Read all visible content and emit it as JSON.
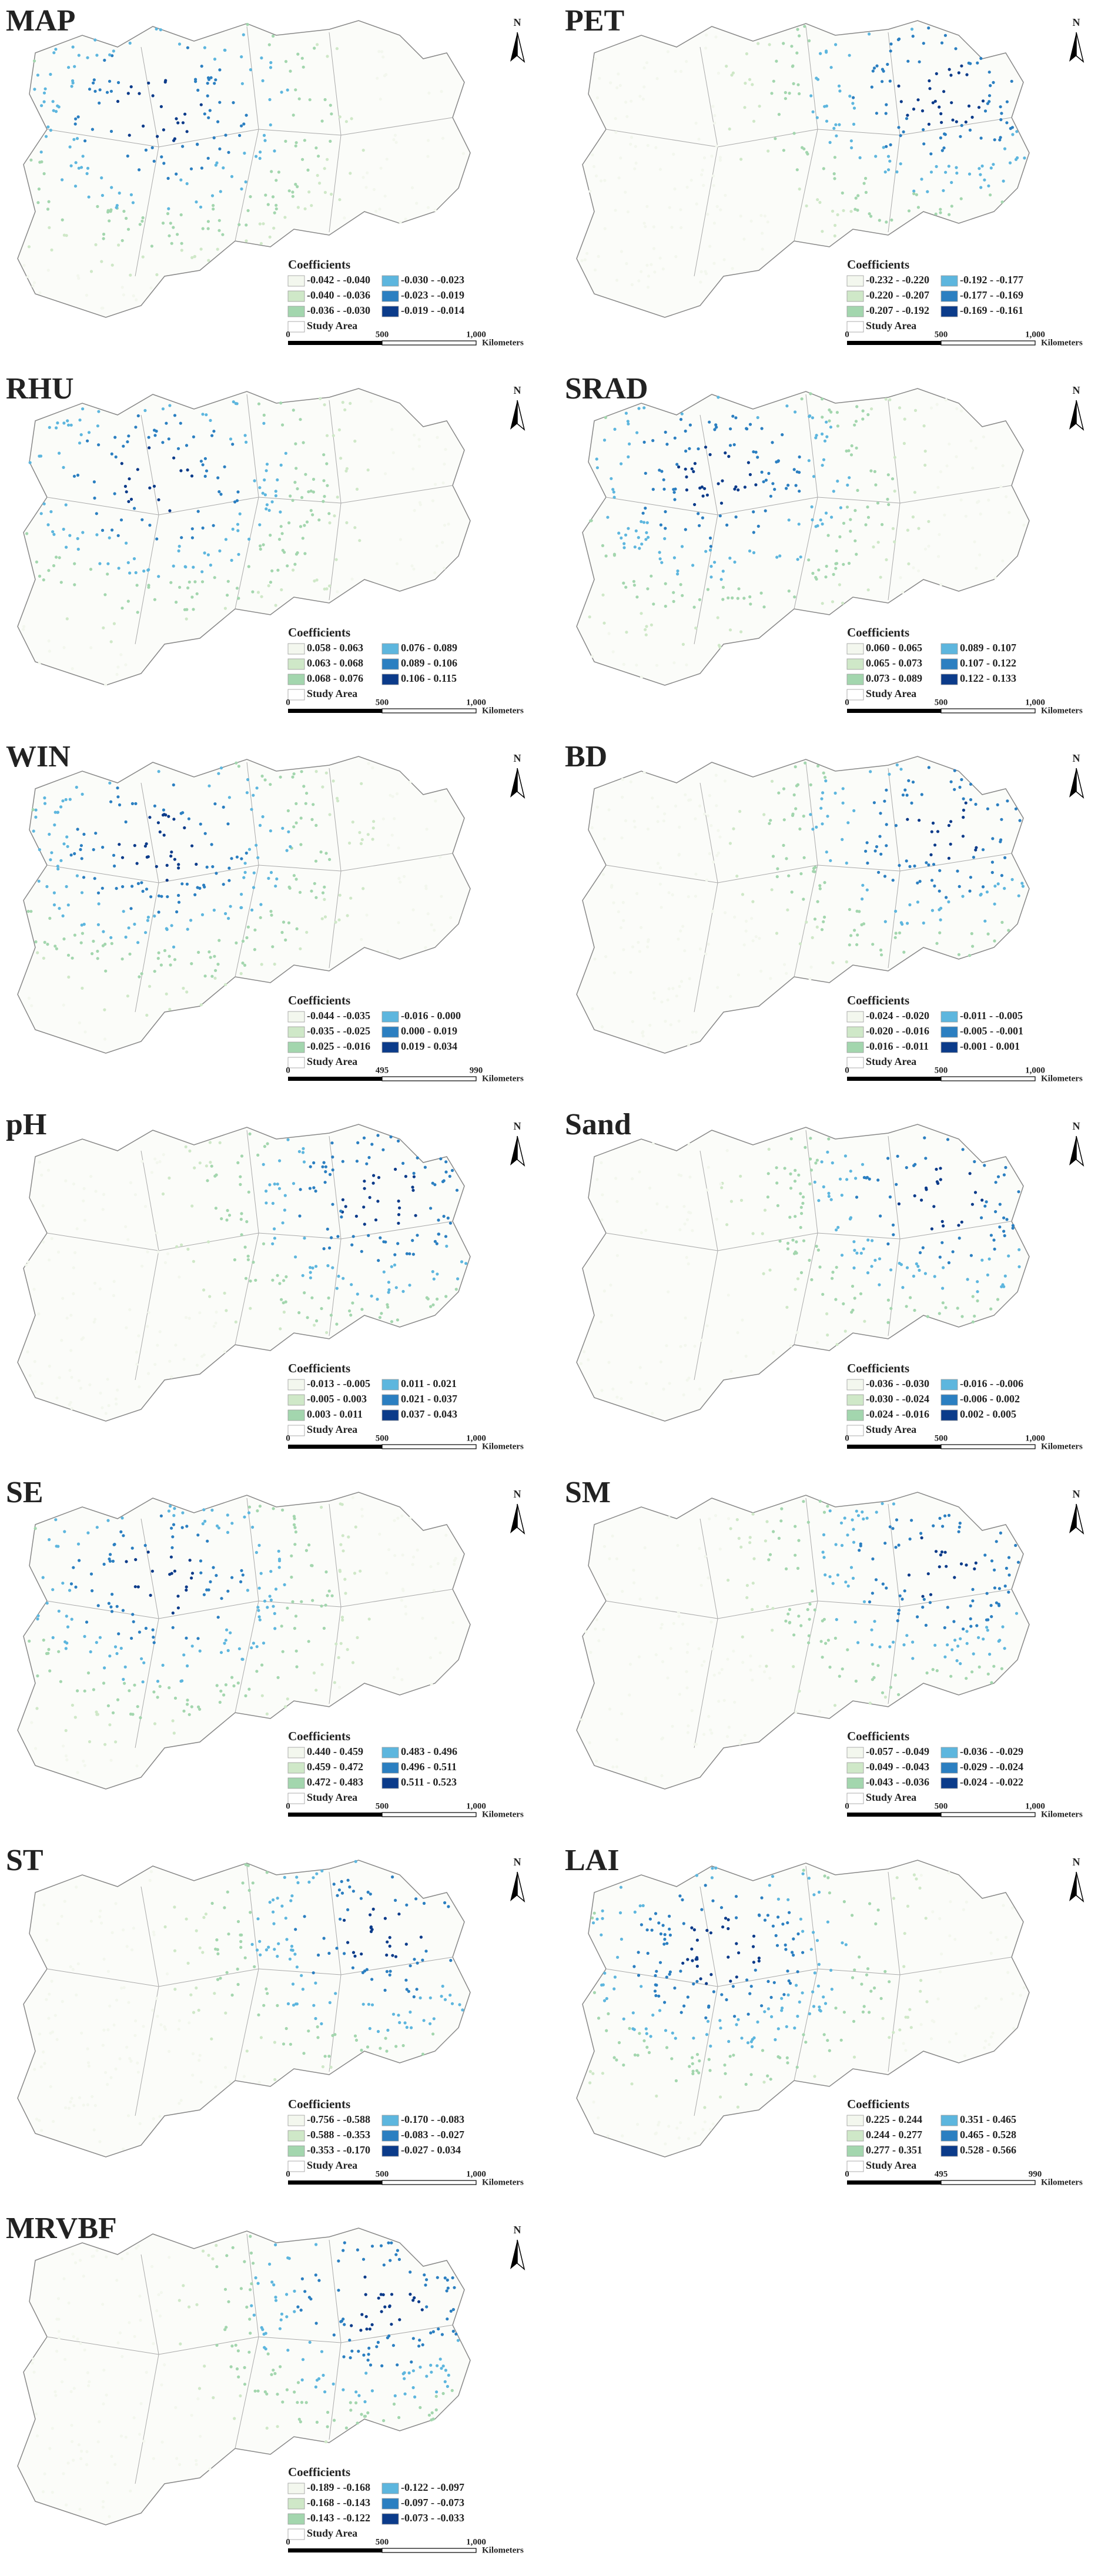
{
  "legend_colors": [
    "#f3f7ee",
    "#cfe8c8",
    "#a3d6ae",
    "#5db6de",
    "#2b7fc1",
    "#0b3b8a"
  ],
  "panels": [
    {
      "title": "MAP",
      "legend_title": "Coefficients",
      "classes": [
        "-0.042 - -0.040",
        "-0.040 - -0.036",
        "-0.036 - -0.030",
        "-0.030 - -0.023",
        "-0.023 - -0.019",
        "-0.019 - -0.014"
      ],
      "study_area": "Study Area",
      "scale_ticks": [
        "0",
        "500",
        "1,000"
      ],
      "scale_unit": "Kilometers",
      "north": "N"
    },
    {
      "title": "PET",
      "legend_title": "Coefficients",
      "classes": [
        "-0.232 - -0.220",
        "-0.220 - -0.207",
        "-0.207 - -0.192",
        "-0.192 - -0.177",
        "-0.177 - -0.169",
        "-0.169 - -0.161"
      ],
      "study_area": "Study Area",
      "scale_ticks": [
        "0",
        "500",
        "1,000"
      ],
      "scale_unit": "Kilometers",
      "north": "N"
    },
    {
      "title": "RHU",
      "legend_title": "Coefficients",
      "classes": [
        "0.058 - 0.063",
        "0.063 - 0.068",
        "0.068 - 0.076",
        "0.076 - 0.089",
        "0.089 - 0.106",
        "0.106 - 0.115"
      ],
      "study_area": "Study Area",
      "scale_ticks": [
        "0",
        "500",
        "1,000"
      ],
      "scale_unit": "Kilometers",
      "north": "N"
    },
    {
      "title": "SRAD",
      "legend_title": "Coefficients",
      "classes": [
        "0.060 - 0.065",
        "0.065 - 0.073",
        "0.073 - 0.089",
        "0.089 - 0.107",
        "0.107 - 0.122",
        "0.122 - 0.133"
      ],
      "study_area": "Study Area",
      "scale_ticks": [
        "0",
        "500",
        "1,000"
      ],
      "scale_unit": "Kilometers",
      "north": "N"
    },
    {
      "title": "WIN",
      "legend_title": "Coefficients",
      "classes": [
        "-0.044 - -0.035",
        "-0.035 - -0.025",
        "-0.025 - -0.016",
        "-0.016 - 0.000",
        "0.000 - 0.019",
        "0.019 - 0.034"
      ],
      "study_area": "Study Area",
      "scale_ticks": [
        "0",
        "495",
        "990"
      ],
      "scale_unit": "Kilometers",
      "north": "N"
    },
    {
      "title": "BD",
      "legend_title": "Coefficients",
      "classes": [
        "-0.024 - -0.020",
        "-0.020 - -0.016",
        "-0.016 - -0.011",
        "-0.011 - -0.005",
        "-0.005 - -0.001",
        "-0.001 - 0.001"
      ],
      "study_area": "Study Area",
      "scale_ticks": [
        "0",
        "500",
        "1,000"
      ],
      "scale_unit": "Kilometers",
      "north": "N"
    },
    {
      "title": "pH",
      "legend_title": "Coefficients",
      "classes": [
        "-0.013 - -0.005",
        "-0.005 - 0.003",
        "0.003 - 0.011",
        "0.011 - 0.021",
        "0.021 - 0.037",
        "0.037 - 0.043"
      ],
      "study_area": "Study Area",
      "scale_ticks": [
        "0",
        "500",
        "1,000"
      ],
      "scale_unit": "Kilometers",
      "north": "N"
    },
    {
      "title": "Sand",
      "legend_title": "Coefficients",
      "classes": [
        "-0.036 - -0.030",
        "-0.030 - -0.024",
        "-0.024 - -0.016",
        "-0.016 - -0.006",
        "-0.006 - 0.002",
        "0.002 - 0.005"
      ],
      "study_area": "Study Area",
      "scale_ticks": [
        "0",
        "500",
        "1,000"
      ],
      "scale_unit": "Kilometers",
      "north": "N"
    },
    {
      "title": "SE",
      "legend_title": "Coefficients",
      "classes": [
        "0.440 - 0.459",
        "0.459 - 0.472",
        "0.472 - 0.483",
        "0.483 - 0.496",
        "0.496 - 0.511",
        "0.511 - 0.523"
      ],
      "study_area": "Study Area",
      "scale_ticks": [
        "0",
        "500",
        "1,000"
      ],
      "scale_unit": "Kilometers",
      "north": "N"
    },
    {
      "title": "SM",
      "legend_title": "Coefficients",
      "classes": [
        "-0.057 - -0.049",
        "-0.049 - -0.043",
        "-0.043 - -0.036",
        "-0.036 - -0.029",
        "-0.029 - -0.024",
        "-0.024 - -0.022"
      ],
      "study_area": "Study Area",
      "scale_ticks": [
        "0",
        "500",
        "1,000"
      ],
      "scale_unit": "Kilometers",
      "north": "N"
    },
    {
      "title": "ST",
      "legend_title": "Coefficients",
      "classes": [
        "-0.756 - -0.588",
        "-0.588 - -0.353",
        "-0.353 - -0.170",
        "-0.170 - -0.083",
        "-0.083 - -0.027",
        "-0.027 - 0.034"
      ],
      "study_area": "Study Area",
      "scale_ticks": [
        "0",
        "500",
        "1,000"
      ],
      "scale_unit": "Kilometers",
      "north": "N"
    },
    {
      "title": "LAI",
      "legend_title": "Coefficients",
      "classes": [
        "0.225 - 0.244",
        "0.244 - 0.277",
        "0.277 - 0.351",
        "0.351 - 0.465",
        "0.465 - 0.528",
        "0.528 - 0.566"
      ],
      "study_area": "Study Area",
      "scale_ticks": [
        "0",
        "495",
        "990"
      ],
      "scale_unit": "Kilometers",
      "north": "N"
    },
    {
      "title": "MRVBF",
      "legend_title": "Coefficients",
      "classes": [
        "-0.189 - -0.168",
        "-0.168 - -0.143",
        "-0.143 - -0.122",
        "-0.122 - -0.097",
        "-0.097 - -0.073",
        "-0.073 - -0.033"
      ],
      "study_area": "Study Area",
      "scale_ticks": [
        "0",
        "500",
        "1,000"
      ],
      "scale_unit": "Kilometers",
      "north": "N"
    }
  ]
}
